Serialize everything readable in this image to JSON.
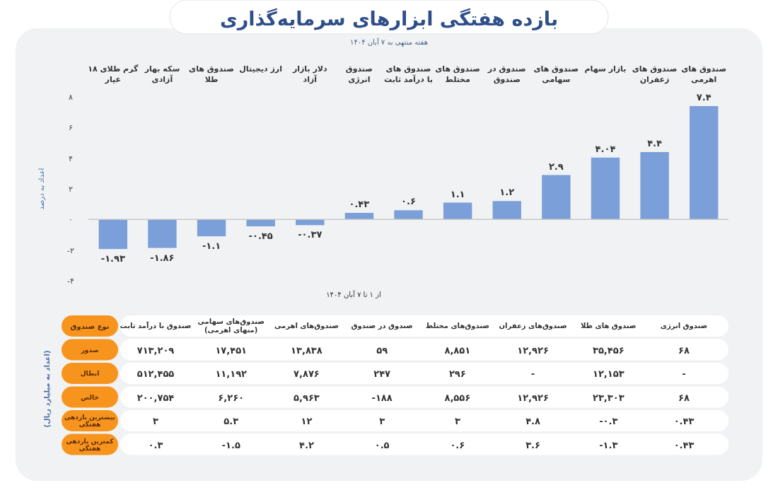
{
  "chart_data": [
    {
      "type": "bar",
      "title": "بازده هفتگی ابزارهای سرمایه‌گذاری",
      "subtitle": "هفته منتهی به ۷ آبان ۱۴۰۴",
      "xlabel": "از ۱ تا ۷ آبان ۱۴۰۴",
      "ylabel": "اعداد به درصد",
      "categories": [
        "گرم طلای ۱۸ عیار",
        "سکه بهار آزادی",
        "صندوق های طلا",
        "ارز دیجیتال",
        "دلار بازار آزاد",
        "صندوق انرژی",
        "صندوق های با درآمد ثابت",
        "صندوق های مختلط",
        "صندوق در صندوق",
        "صندوق های سهامی",
        "بازار سهام",
        "صندوق های زعفران",
        "صندوق های اهرمی"
      ],
      "values": [
        -1.93,
        -1.86,
        -1.1,
        -0.45,
        -0.37,
        0.43,
        0.6,
        1.1,
        1.2,
        2.9,
        4.04,
        4.4,
        7.4
      ],
      "value_labels": [
        "-۱.۹۳",
        "-۱.۸۶",
        "-۱.۱",
        "-۰.۴۵",
        "-۰.۳۷",
        "۰.۴۳",
        "۰.۶",
        "۱.۱",
        "۱.۲",
        "۲.۹",
        "۴.۰۴",
        "۴.۴",
        "۷.۴"
      ],
      "color": "#7b9fd8",
      "ylim": [
        -4,
        8
      ],
      "yticks": [
        {
          "value": -4,
          "label": "-۴"
        },
        {
          "value": -2,
          "label": "-۲"
        },
        {
          "value": 0,
          "label": "۰"
        },
        {
          "value": 2,
          "label": "۲"
        },
        {
          "value": 4,
          "label": "۴"
        },
        {
          "value": 6,
          "label": "۶"
        },
        {
          "value": 8,
          "label": "۸"
        }
      ]
    },
    {
      "type": "other",
      "xlabel": "نوع صندوق",
      "ylabel": "(اعداد به میلیارد ریال)",
      "categories": [
        "صندوق با درآمد ثابت",
        "صندوق‌های سهامی (منهای اهرمی)",
        "صندوق‌های اهرمی",
        "صندوق در صندوق",
        "صندوق‌های مختلط",
        "صندوق‌های زعفران",
        "صندوق های طلا",
        "صندوق انرژی"
      ],
      "y_categories": [
        "صدور",
        "ابطال",
        "خالص",
        "بیشترین بازدهی هفتگی",
        "کمترین بازدهی هفتگی"
      ],
      "cell_labels": [
        [
          "۷۱۳,۲۰۹",
          "۱۷,۴۵۱",
          "۱۳,۸۳۸",
          "۵۹",
          "۸,۸۵۱",
          "۱۲,۹۲۶",
          "۳۵,۴۵۶",
          "۶۸"
        ],
        [
          "۵۱۲,۴۵۵",
          "۱۱,۱۹۲",
          "۷,۸۷۶",
          "۲۴۷",
          "۲۹۶",
          "-",
          "۱۲,۱۵۳",
          "-"
        ],
        [
          "۲۰۰,۷۵۴",
          "۶,۲۶۰",
          "۵,۹۶۳",
          "-۱۸۸",
          "۸,۵۵۶",
          "۱۲,۹۲۶",
          "۲۳,۳۰۳",
          "۶۸"
        ],
        [
          "۳",
          "۵.۳",
          "۱۲",
          "۳",
          "۳",
          "۴.۸",
          "-۰.۳",
          "۰.۴۳"
        ],
        [
          "۰.۳",
          "-۱.۵",
          "۴.۲",
          "۰.۵",
          "۰.۶",
          "۳.۶",
          "-۱.۳",
          "۰.۴۳"
        ]
      ]
    }
  ]
}
